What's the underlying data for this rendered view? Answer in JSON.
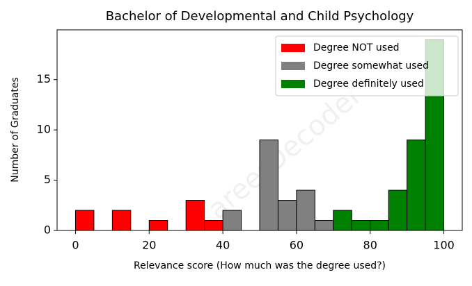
{
  "chart_data": {
    "type": "histogram",
    "title": "Bachelor of Developmental and Child Psychology",
    "xlabel": "Relevance score (How much was the degree used?)",
    "ylabel": "Number of Graduates",
    "watermark": "CareerDecoder",
    "bins": [
      0,
      5,
      10,
      15,
      20,
      25,
      30,
      35,
      40,
      45,
      50,
      55,
      60,
      65,
      70,
      75,
      80,
      85,
      90,
      95,
      100
    ],
    "series": [
      {
        "name": "Degree NOT used",
        "color": "#ff0000",
        "values": [
          2,
          0,
          2,
          0,
          1,
          0,
          3,
          1,
          0,
          0,
          0,
          0,
          0,
          0,
          0,
          0,
          0,
          0,
          0,
          0
        ]
      },
      {
        "name": "Degree somewhat used",
        "color": "#808080",
        "values": [
          0,
          0,
          0,
          0,
          0,
          0,
          0,
          0,
          2,
          0,
          9,
          3,
          4,
          1,
          0,
          0,
          0,
          0,
          0,
          0
        ]
      },
      {
        "name": "Degree definitely used",
        "color": "#008000",
        "values": [
          0,
          0,
          0,
          0,
          0,
          0,
          0,
          0,
          0,
          0,
          0,
          0,
          0,
          0,
          2,
          1,
          1,
          4,
          9,
          19
        ]
      }
    ],
    "xlim": [
      -5,
      105
    ],
    "ylim": [
      0,
      19.95
    ],
    "xticks": [
      0,
      20,
      40,
      60,
      80,
      100
    ],
    "yticks": [
      0,
      5,
      10,
      15
    ],
    "legend": "upper right"
  }
}
